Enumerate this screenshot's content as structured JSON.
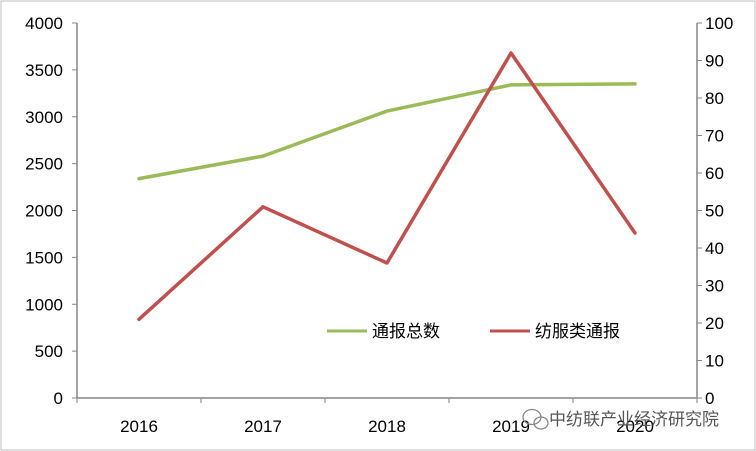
{
  "chart_data": {
    "type": "line",
    "title": "",
    "xlabel": "",
    "ylabel": "",
    "y2label": "",
    "categories": [
      "2016",
      "2017",
      "2018",
      "2019",
      "2020"
    ],
    "ylim": [
      0,
      4000
    ],
    "yticks": [
      0,
      500,
      1000,
      1500,
      2000,
      2500,
      3000,
      3500,
      4000
    ],
    "y2lim": [
      0,
      100
    ],
    "y2ticks": [
      0,
      10,
      20,
      30,
      40,
      50,
      60,
      70,
      80,
      90,
      100
    ],
    "grid": false,
    "legend_position": "lower-right",
    "series": [
      {
        "name": "通报总数",
        "axis": "left",
        "color": "#9bbb59",
        "values": [
          2340,
          2580,
          3060,
          3340,
          3350
        ]
      },
      {
        "name": "纺服类通报",
        "axis": "right",
        "color": "#c0504d",
        "values": [
          21,
          51,
          36,
          92,
          44
        ]
      }
    ]
  },
  "watermark": {
    "icon": "wechat-icon",
    "text": "中纺联产业经济研究院"
  }
}
